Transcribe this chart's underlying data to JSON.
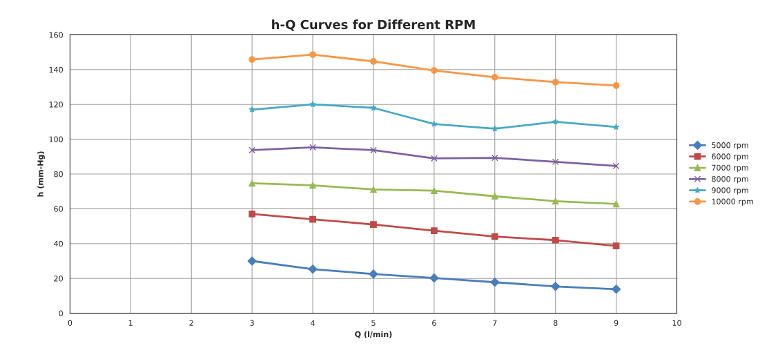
{
  "chart_data": {
    "type": "line",
    "title": "h-Q Curves for Different RPM",
    "xlabel": "Q (l/min)",
    "ylabel": "h (mm-Hg)",
    "x": [
      3,
      4,
      5,
      6,
      7,
      8,
      9
    ],
    "series": [
      {
        "name": "5000 rpm",
        "color": "#4a7ebb",
        "marker": "diamond",
        "values": [
          30,
          25.3,
          22.5,
          20.2,
          17.8,
          15.4,
          13.8
        ]
      },
      {
        "name": "6000 rpm",
        "color": "#be4b48",
        "marker": "square",
        "values": [
          57,
          54,
          51,
          47.4,
          44,
          42,
          38.7
        ]
      },
      {
        "name": "7000 rpm",
        "color": "#98b954",
        "marker": "triangle",
        "values": [
          74.7,
          73.5,
          71.1,
          70.4,
          67.2,
          64.4,
          62.8
        ]
      },
      {
        "name": "8000 rpm",
        "color": "#7d60a0",
        "marker": "cross",
        "values": [
          93.7,
          95.3,
          93.7,
          89,
          89.3,
          87,
          84.6
        ]
      },
      {
        "name": "9000 rpm",
        "color": "#46aac5",
        "marker": "star",
        "values": [
          117,
          120,
          118,
          108.7,
          106,
          110,
          107
        ]
      },
      {
        "name": "10000 rpm",
        "color": "#f79646",
        "marker": "circle",
        "values": [
          145.8,
          148.6,
          144.7,
          139.5,
          135.6,
          132.8,
          130.8
        ]
      }
    ],
    "xlim": [
      0,
      10
    ],
    "xticks": [
      0,
      1,
      2,
      3,
      4,
      5,
      6,
      7,
      8,
      9,
      10
    ],
    "ylim": [
      0,
      160
    ],
    "yticks": [
      0,
      20,
      40,
      60,
      80,
      100,
      120,
      140,
      160
    ],
    "grid": true,
    "legend": "right"
  }
}
